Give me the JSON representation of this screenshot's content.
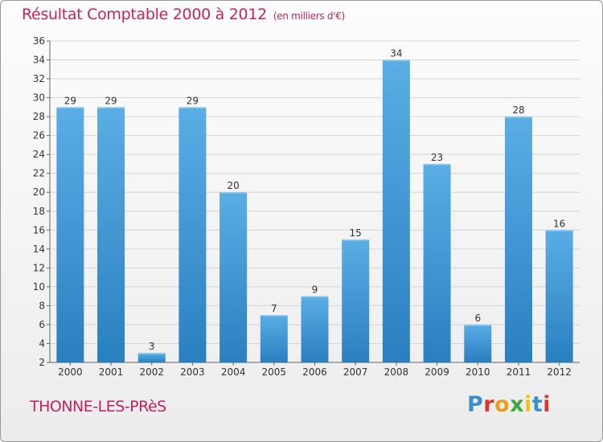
{
  "header": {
    "title": "Résultat Comptable 2000 à 2012",
    "unit": "(en milliers d'€)"
  },
  "footer": {
    "city": "THONNE-LES-PRèS",
    "logo": "Proxiti"
  },
  "colors": {
    "title": "#c0245f",
    "bar_light": "#5aaee5",
    "bar_dark": "#2a7fc0"
  },
  "chart_data": {
    "type": "bar",
    "title": "Résultat Comptable 2000 à 2012",
    "subtitle": "(en milliers d'€)",
    "xlabel": "",
    "ylabel": "",
    "categories": [
      "2000",
      "2001",
      "2002",
      "2003",
      "2004",
      "2005",
      "2006",
      "2007",
      "2008",
      "2009",
      "2010",
      "2011",
      "2012"
    ],
    "values": [
      29,
      29,
      3,
      29,
      20,
      7,
      9,
      15,
      34,
      23,
      6,
      28,
      16
    ],
    "ylim": [
      2,
      36
    ],
    "yticks": [
      2,
      4,
      6,
      8,
      10,
      12,
      14,
      16,
      18,
      20,
      22,
      24,
      26,
      28,
      30,
      32,
      34,
      36
    ],
    "grid": true,
    "legend": "none"
  }
}
